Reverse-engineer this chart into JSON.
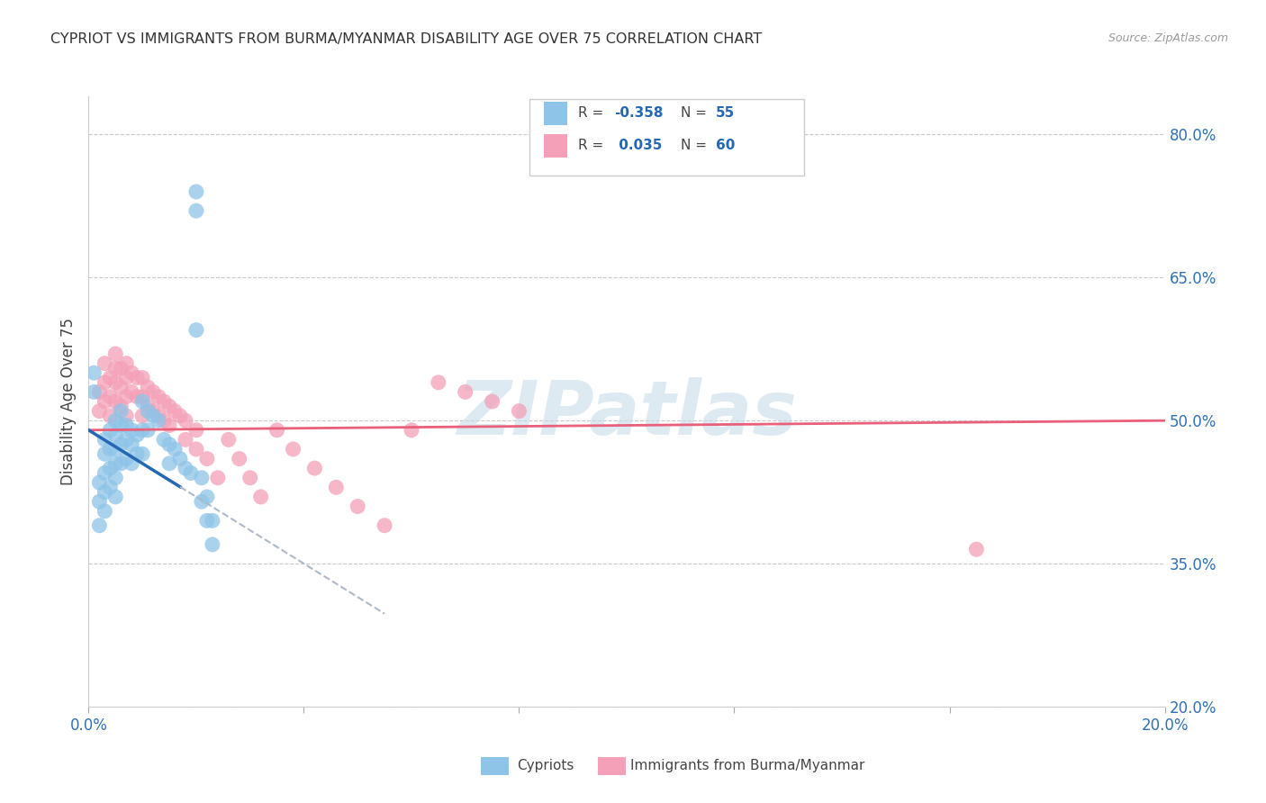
{
  "title": "CYPRIOT VS IMMIGRANTS FROM BURMA/MYANMAR DISABILITY AGE OVER 75 CORRELATION CHART",
  "source": "Source: ZipAtlas.com",
  "ylabel": "Disability Age Over 75",
  "xlim": [
    0.0,
    0.2
  ],
  "ylim": [
    0.2,
    0.84
  ],
  "ytick_right_labels": [
    "80.0%",
    "65.0%",
    "50.0%",
    "35.0%",
    "20.0%"
  ],
  "ytick_right_values": [
    0.8,
    0.65,
    0.5,
    0.35,
    0.2
  ],
  "blue_color": "#8ec4e8",
  "pink_color": "#f4a0b8",
  "blue_line_color": "#2468b4",
  "pink_line_color": "#e8607a",
  "dash_color": "#b0b8c8",
  "background_color": "#ffffff",
  "grid_color": "#c8c8c8",
  "watermark": "ZIPatlas",
  "watermark_color": "#c8dce8",
  "r_value_color": "#2468b4",
  "cypriots_x": [
    0.002,
    0.002,
    0.002,
    0.003,
    0.003,
    0.003,
    0.003,
    0.003,
    0.004,
    0.004,
    0.004,
    0.004,
    0.005,
    0.005,
    0.005,
    0.005,
    0.005,
    0.005,
    0.006,
    0.006,
    0.006,
    0.006,
    0.007,
    0.007,
    0.007,
    0.008,
    0.008,
    0.008,
    0.009,
    0.009,
    0.01,
    0.01,
    0.01,
    0.011,
    0.011,
    0.012,
    0.013,
    0.014,
    0.016,
    0.018,
    0.001,
    0.001,
    0.015,
    0.015,
    0.02,
    0.02,
    0.02,
    0.017,
    0.019,
    0.021,
    0.021,
    0.022,
    0.022,
    0.023,
    0.023
  ],
  "cypriots_y": [
    0.435,
    0.415,
    0.39,
    0.48,
    0.465,
    0.445,
    0.425,
    0.405,
    0.49,
    0.47,
    0.45,
    0.43,
    0.5,
    0.485,
    0.47,
    0.455,
    0.44,
    0.42,
    0.51,
    0.495,
    0.475,
    0.455,
    0.495,
    0.48,
    0.46,
    0.49,
    0.475,
    0.455,
    0.485,
    0.465,
    0.52,
    0.49,
    0.465,
    0.51,
    0.49,
    0.505,
    0.5,
    0.48,
    0.47,
    0.45,
    0.55,
    0.53,
    0.475,
    0.455,
    0.595,
    0.72,
    0.74,
    0.46,
    0.445,
    0.44,
    0.415,
    0.42,
    0.395,
    0.395,
    0.37
  ],
  "burma_x": [
    0.002,
    0.002,
    0.003,
    0.003,
    0.003,
    0.004,
    0.004,
    0.004,
    0.005,
    0.005,
    0.005,
    0.005,
    0.006,
    0.006,
    0.006,
    0.007,
    0.007,
    0.007,
    0.007,
    0.008,
    0.008,
    0.009,
    0.009,
    0.01,
    0.01,
    0.01,
    0.011,
    0.011,
    0.012,
    0.012,
    0.013,
    0.013,
    0.014,
    0.014,
    0.015,
    0.015,
    0.016,
    0.017,
    0.018,
    0.018,
    0.02,
    0.02,
    0.022,
    0.024,
    0.026,
    0.028,
    0.03,
    0.032,
    0.035,
    0.038,
    0.042,
    0.046,
    0.05,
    0.055,
    0.06,
    0.065,
    0.07,
    0.075,
    0.08,
    0.165
  ],
  "burma_y": [
    0.53,
    0.51,
    0.56,
    0.54,
    0.52,
    0.545,
    0.525,
    0.505,
    0.57,
    0.555,
    0.54,
    0.52,
    0.555,
    0.535,
    0.515,
    0.56,
    0.545,
    0.525,
    0.505,
    0.55,
    0.53,
    0.545,
    0.525,
    0.545,
    0.525,
    0.505,
    0.535,
    0.515,
    0.53,
    0.51,
    0.525,
    0.505,
    0.52,
    0.5,
    0.515,
    0.495,
    0.51,
    0.505,
    0.5,
    0.48,
    0.49,
    0.47,
    0.46,
    0.44,
    0.48,
    0.46,
    0.44,
    0.42,
    0.49,
    0.47,
    0.45,
    0.43,
    0.41,
    0.39,
    0.49,
    0.54,
    0.53,
    0.52,
    0.51,
    0.365
  ]
}
